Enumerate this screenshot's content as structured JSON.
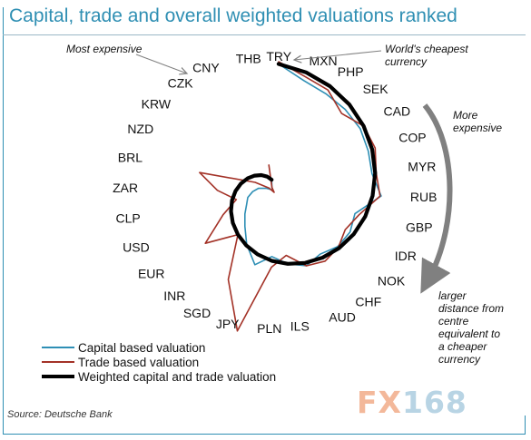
{
  "title": "Capital, trade and overall weighted valuations ranked",
  "source": "Source: Deutsche Bank",
  "logo": {
    "fx": "FX",
    "num": "168"
  },
  "annotations": {
    "most_expensive": "Most expensive",
    "worlds_cheapest_1": "World's cheapest",
    "worlds_cheapest_2": "currency",
    "more_expensive_1": "More",
    "more_expensive_2": "expensive",
    "larger_1": "larger",
    "larger_2": "distance  from",
    "larger_3": "centre",
    "larger_4": "equivalent to",
    "larger_5": "a cheaper",
    "larger_6": "currency"
  },
  "colors": {
    "capital": "#2e8fb5",
    "trade": "#a33227",
    "weighted": "#000000",
    "arrow": "#808080",
    "title": "#2f8fb3"
  },
  "chart_data": {
    "type": "radar",
    "title": "Capital, trade and overall weighted valuations ranked",
    "categories": [
      "TRY",
      "MXN",
      "PHP",
      "SEK",
      "CAD",
      "COP",
      "MYR",
      "RUB",
      "GBP",
      "IDR",
      "NOK",
      "CHF",
      "AUD",
      "ILS",
      "PLN",
      "JPY",
      "SGD",
      "INR",
      "EUR",
      "USD",
      "CLP",
      "ZAR",
      "BRL",
      "NZD",
      "KRW",
      "CZK",
      "CNY",
      "THB"
    ],
    "note": "larger distance from centre equivalent to a cheaper currency",
    "series": [
      {
        "name": "Capital based valuation",
        "values": [
          120,
          108,
          104,
          102,
          100,
          96,
          93,
          100,
          78,
          80,
          78,
          72,
          75,
          68,
          60,
          70,
          55,
          42,
          34,
          28,
          25,
          20,
          15,
          8,
          4,
          2,
          5,
          12
        ]
      },
      {
        "name": "Trade based valuation",
        "values": [
          122,
          112,
          108,
          97,
          104,
          103,
          97,
          99,
          82,
          75,
          79,
          80,
          75,
          60,
          70,
          134,
          92,
          52,
          80,
          52,
          36,
          53,
          72,
          20,
          6,
          0,
          5,
          26
        ]
      },
      {
        "name": "Weighted capital and trade valuation",
        "values": [
          120,
          116,
          112,
          108,
          104,
          100,
          96,
          92,
          88,
          84,
          80,
          76,
          72,
          68,
          64,
          60,
          56,
          52,
          48,
          44,
          40,
          36,
          32,
          28,
          24,
          20,
          16,
          12
        ]
      }
    ],
    "legend": "bottom-left"
  }
}
